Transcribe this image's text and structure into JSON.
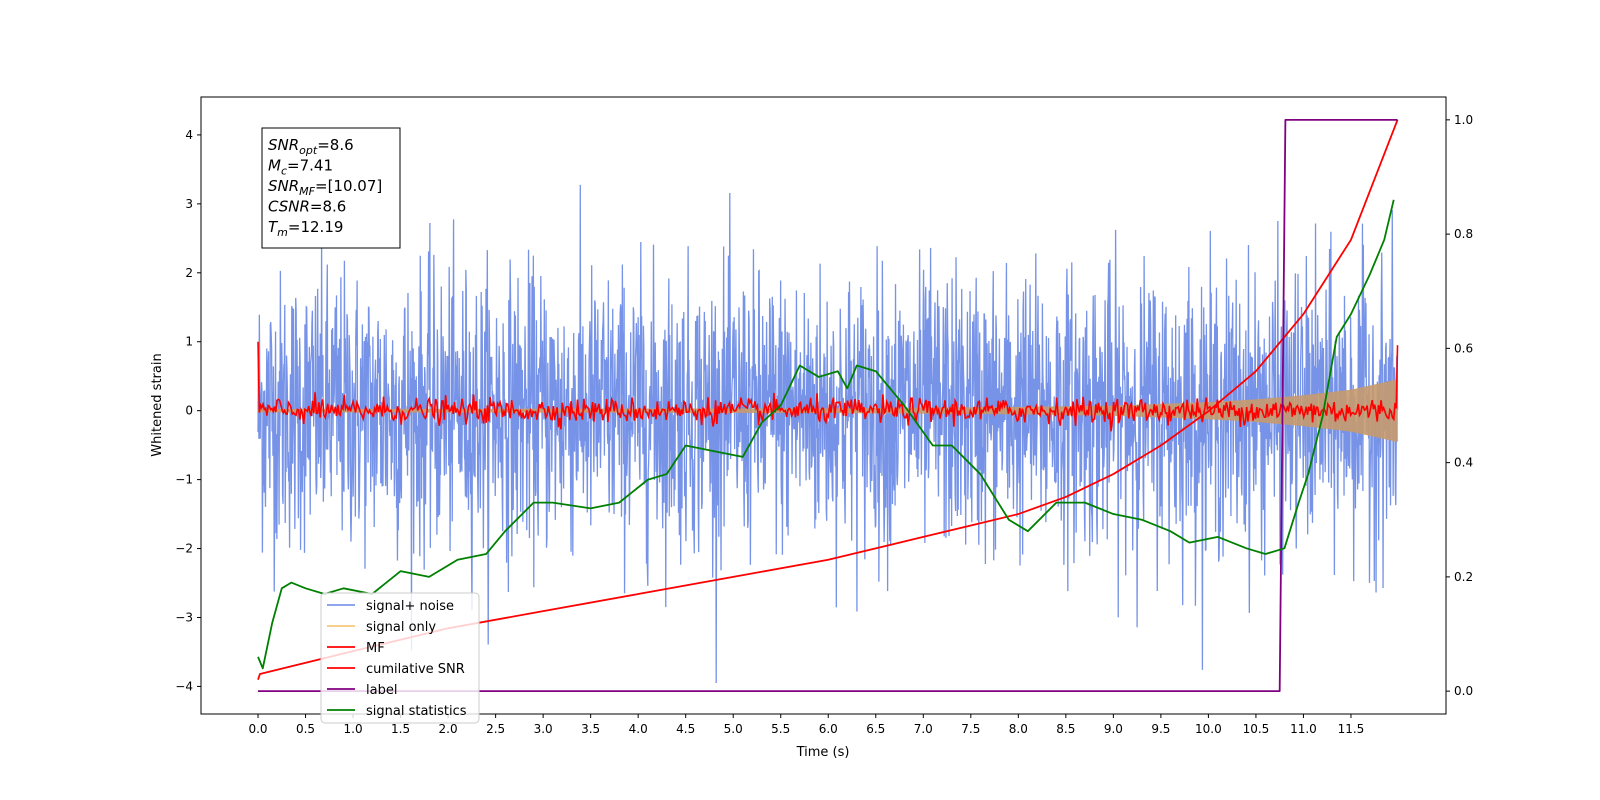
{
  "chart_data": {
    "type": "line",
    "xlabel": "Time (s)",
    "ylabel": "Whitened strain",
    "xlim": [
      -0.6,
      12.5
    ],
    "ylim": [
      -4.4,
      4.55
    ],
    "y2lim": [
      -0.04,
      1.04
    ],
    "xticks": [
      "0.0",
      "0.5",
      "1.0",
      "1.5",
      "2.0",
      "2.5",
      "3.0",
      "3.5",
      "4.0",
      "4.5",
      "5.0",
      "5.5",
      "6.0",
      "6.5",
      "7.0",
      "7.5",
      "8.0",
      "8.5",
      "9.0",
      "9.5",
      "10.0",
      "10.5",
      "11.0",
      "11.5"
    ],
    "yticks": [
      "4",
      "3",
      "2",
      "1",
      "0",
      "−1",
      "−2",
      "−3",
      "−4"
    ],
    "y2ticks": [
      "1.0",
      "0.8",
      "0.6",
      "0.4",
      "0.2",
      "0.0"
    ],
    "grid": false,
    "legend_position": "lower-left",
    "info_box": [
      {
        "sym": "SNR",
        "sub": "opt",
        "rest": "=8.6"
      },
      {
        "sym": "M",
        "sub": "c",
        "rest": "=7.41"
      },
      {
        "sym": "SNR",
        "sub": "MF",
        "rest": "=[10.07]"
      },
      {
        "sym": "CSNR",
        "sub": "",
        "rest": "=8.6"
      },
      {
        "sym": "T",
        "sub": "m",
        "rest": "=12.19"
      }
    ],
    "series": [
      {
        "name": "signal+ noise",
        "color": "#6f8de6",
        "axis": "left",
        "noise_std": 1.0,
        "x_range": [
          0.0,
          11.99
        ]
      },
      {
        "name": "signal only",
        "color": "#f5c87a",
        "axis": "left",
        "envelope": {
          "x": [
            0.0,
            6.0,
            8.0,
            9.0,
            10.0,
            10.5,
            11.0,
            11.5,
            11.99
          ],
          "amp": [
            0.02,
            0.03,
            0.05,
            0.07,
            0.12,
            0.16,
            0.22,
            0.3,
            0.45
          ]
        }
      },
      {
        "name": "MF",
        "color": "#ff0000",
        "axis": "left",
        "start_value": 1.0,
        "noise_std": 0.09,
        "x_range": [
          0.0,
          11.99
        ]
      },
      {
        "name": "cumilative SNR",
        "color": "#ff0000",
        "axis": "right",
        "x": [
          0.0,
          0.02,
          1.0,
          2.0,
          3.0,
          4.0,
          5.0,
          6.0,
          7.0,
          7.5,
          8.0,
          8.5,
          9.0,
          9.5,
          10.0,
          10.5,
          11.0,
          11.5,
          11.99
        ],
        "y": [
          0.02,
          0.03,
          0.07,
          0.11,
          0.14,
          0.17,
          0.2,
          0.23,
          0.27,
          0.29,
          0.31,
          0.34,
          0.38,
          0.43,
          0.49,
          0.56,
          0.66,
          0.79,
          1.0
        ]
      },
      {
        "name": "label",
        "color": "#800080",
        "axis": "right",
        "x": [
          0.0,
          10.75,
          10.81,
          11.99
        ],
        "y": [
          0.0,
          0.0,
          1.0,
          1.0
        ]
      },
      {
        "name": "signal statistics",
        "color": "#008000",
        "axis": "right",
        "x": [
          0.0,
          0.05,
          0.15,
          0.25,
          0.35,
          0.5,
          0.7,
          0.9,
          1.2,
          1.5,
          1.8,
          2.1,
          2.4,
          2.6,
          2.9,
          3.1,
          3.5,
          3.8,
          4.1,
          4.3,
          4.5,
          4.8,
          5.1,
          5.3,
          5.5,
          5.7,
          5.9,
          6.1,
          6.2,
          6.3,
          6.5,
          6.6,
          6.8,
          7.1,
          7.3,
          7.6,
          7.9,
          8.1,
          8.4,
          8.7,
          9.0,
          9.3,
          9.6,
          9.8,
          10.1,
          10.4,
          10.6,
          10.8,
          10.95,
          11.05,
          11.2,
          11.35,
          11.5,
          11.7,
          11.85,
          11.95
        ],
        "y": [
          0.06,
          0.04,
          0.12,
          0.18,
          0.19,
          0.18,
          0.17,
          0.18,
          0.17,
          0.21,
          0.2,
          0.23,
          0.24,
          0.28,
          0.33,
          0.33,
          0.32,
          0.33,
          0.37,
          0.38,
          0.43,
          0.42,
          0.41,
          0.47,
          0.5,
          0.57,
          0.55,
          0.56,
          0.53,
          0.57,
          0.56,
          0.54,
          0.5,
          0.43,
          0.43,
          0.38,
          0.3,
          0.28,
          0.33,
          0.33,
          0.31,
          0.3,
          0.28,
          0.26,
          0.27,
          0.25,
          0.24,
          0.25,
          0.33,
          0.38,
          0.48,
          0.62,
          0.66,
          0.73,
          0.79,
          0.86
        ]
      }
    ]
  }
}
